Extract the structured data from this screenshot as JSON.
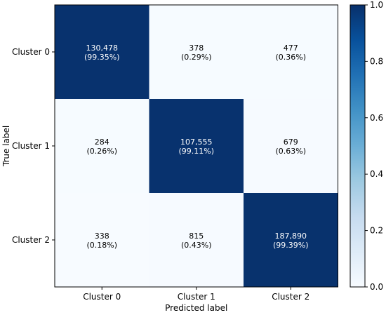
{
  "chart_data": {
    "type": "heatmap",
    "title": "",
    "xlabel": "Predicted label",
    "ylabel": "True label",
    "x_categories": [
      "Cluster 0",
      "Cluster 1",
      "Cluster 2"
    ],
    "y_categories": [
      "Cluster 0",
      "Cluster 1",
      "Cluster 2"
    ],
    "cells": [
      [
        {
          "count": "130,478",
          "percent": "(99.35%)",
          "value": 0.9935
        },
        {
          "count": "378",
          "percent": "(0.29%)",
          "value": 0.0029
        },
        {
          "count": "477",
          "percent": "(0.36%)",
          "value": 0.0036
        }
      ],
      [
        {
          "count": "284",
          "percent": "(0.26%)",
          "value": 0.0026
        },
        {
          "count": "107,555",
          "percent": "(99.11%)",
          "value": 0.9911
        },
        {
          "count": "679",
          "percent": "(0.63%)",
          "value": 0.0063
        }
      ],
      [
        {
          "count": "338",
          "percent": "(0.18%)",
          "value": 0.0018
        },
        {
          "count": "815",
          "percent": "(0.43%)",
          "value": 0.0043
        },
        {
          "count": "187,890",
          "percent": "(99.39%)",
          "value": 0.9939
        }
      ]
    ],
    "colorbar": {
      "min": 0.0,
      "max": 1.0,
      "ticks": [
        "0.0",
        "0.2",
        "0.4",
        "0.6",
        "0.8",
        "1.0"
      ],
      "colormap": "Blues"
    },
    "grid": false,
    "legend": "colorbar-right"
  }
}
